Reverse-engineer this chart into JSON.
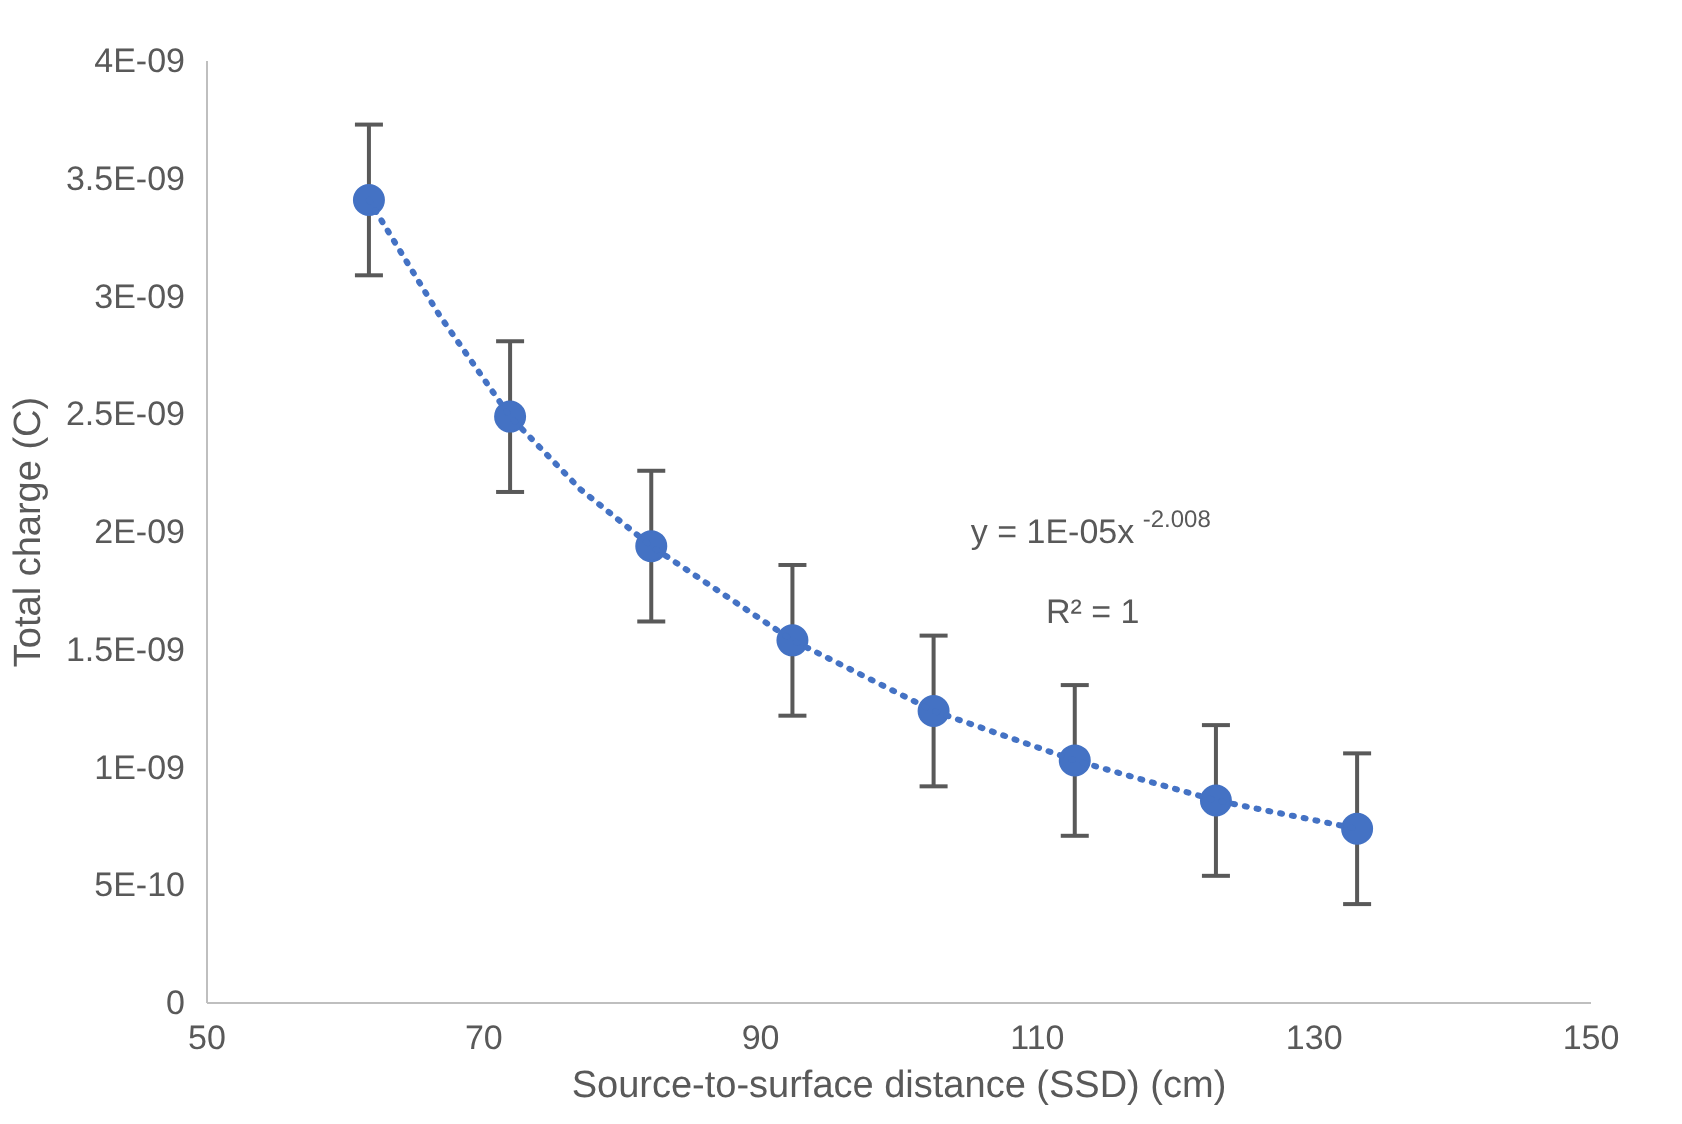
{
  "chart_data": {
    "type": "scatter",
    "xlabel": "Source-to-surface distance (SSD) (cm)",
    "ylabel": "Total charge (C)",
    "x": [
      61.7,
      71.9,
      82.1,
      92.3,
      102.5,
      112.7,
      122.9,
      133.1
    ],
    "series": [
      {
        "color": "#4472c4",
        "values": [
          3.41e-09,
          2.49e-09,
          1.94e-09,
          1.54e-09,
          1.24e-09,
          1.03e-09,
          8.6e-10,
          7.4e-10
        ],
        "errors": [
          3.2e-10,
          3.2e-10,
          3.2e-10,
          3.2e-10,
          3.2e-10,
          3.2e-10,
          3.2e-10,
          3.2e-10
        ],
        "marker": "circle"
      },
      {
        "type": "line",
        "color": "#4472c4",
        "line_style": "dotted",
        "x": [
          61.7,
          66.8,
          71.9,
          77.0,
          82.1,
          92.3,
          102.5,
          112.7,
          122.9,
          133.1
        ],
        "values": [
          3.41e-09,
          2.92e-09,
          2.49e-09,
          2.18e-09,
          1.94e-09,
          1.54e-09,
          1.24e-09,
          1.03e-09,
          8.6e-10,
          7.4e-10
        ]
      }
    ],
    "xlim": [
      50,
      150
    ],
    "xticks": [
      50,
      70,
      90,
      110,
      130,
      150
    ],
    "ylim": [
      0,
      4e-09
    ],
    "yticks": [
      {
        "value": 0,
        "label": "0"
      },
      {
        "value": 5e-10,
        "label": "5E-10"
      },
      {
        "value": 1e-09,
        "label": "1E-09"
      },
      {
        "value": 1.5e-09,
        "label": "1.5E-09"
      },
      {
        "value": 2e-09,
        "label": "2E-09"
      },
      {
        "value": 2.5e-09,
        "label": "2.5E-09"
      },
      {
        "value": 3e-09,
        "label": "3E-09"
      },
      {
        "value": 3.5e-09,
        "label": "3.5E-09"
      },
      {
        "value": 4e-09,
        "label": "4E-09"
      }
    ],
    "annotations": [
      "y = 1E-05x$^{-2.008}$",
      "R² = 1"
    ],
    "grid": false
  }
}
